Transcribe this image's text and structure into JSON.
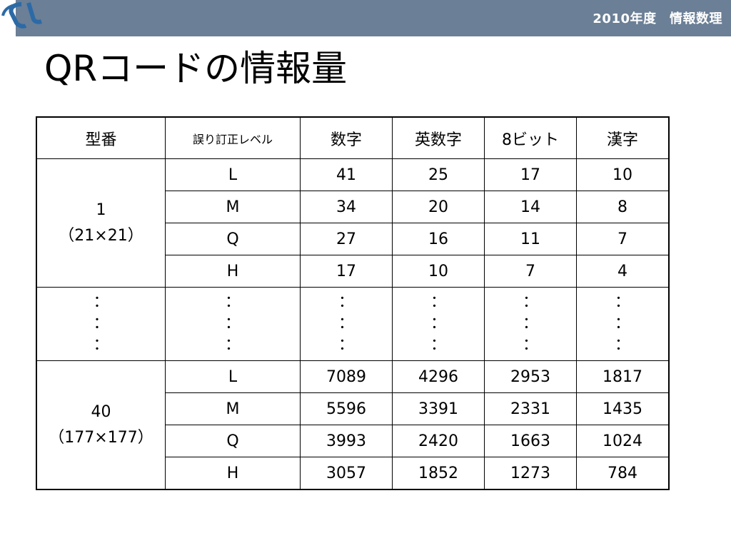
{
  "header": {
    "title": "2010年度　情報数理"
  },
  "slide": {
    "title": "QRコードの情報量"
  },
  "table": {
    "headers": [
      "型番",
      "誤り訂正レベル",
      "数字",
      "英数字",
      "8ビット",
      "漢字"
    ],
    "groups": [
      {
        "model": "1",
        "size": "（21×21）",
        "rows": [
          [
            "L",
            "41",
            "25",
            "17",
            "10"
          ],
          [
            "M",
            "34",
            "20",
            "14",
            "8"
          ],
          [
            "Q",
            "27",
            "16",
            "11",
            "7"
          ],
          [
            "H",
            "17",
            "10",
            "7",
            "4"
          ]
        ]
      },
      {
        "model": "40",
        "size": "（177×177）",
        "rows": [
          [
            "L",
            "7089",
            "4296",
            "2953",
            "1817"
          ],
          [
            "M",
            "5596",
            "3391",
            "2331",
            "1435"
          ],
          [
            "Q",
            "3993",
            "2420",
            "1663",
            "1024"
          ],
          [
            "H",
            "3057",
            "1852",
            "1273",
            "784"
          ]
        ]
      }
    ],
    "ellipsis": "：",
    "ellipsis_lines": 3
  }
}
